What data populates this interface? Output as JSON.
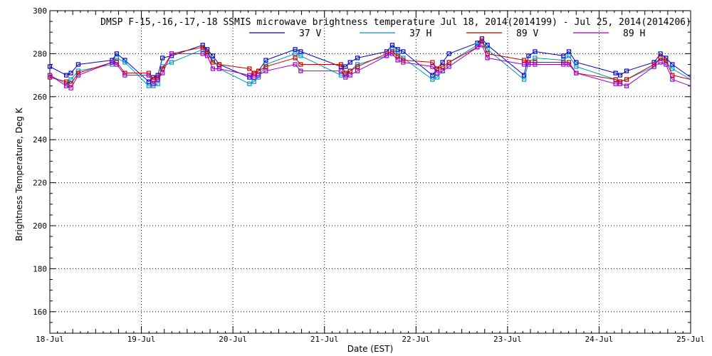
{
  "chart_data": {
    "type": "line",
    "title": "DMSP F-15,-16,-17,-18 SSMIS microwave brightness temperature Jul 18, 2014(2014199) - Jul 25, 2014(2014206)",
    "xlabel": "Date (EST)",
    "ylabel": "Brightness Temperature, Deg K",
    "xlim": [
      "2014-07-18",
      "2014-07-25"
    ],
    "ylim": [
      150,
      300
    ],
    "x_tick_labels": [
      "18-Jul",
      "19-Jul",
      "20-Jul",
      "21-Jul",
      "22-Jul",
      "23-Jul",
      "24-Jul",
      "25-Jul"
    ],
    "y_tick_labels": [
      "160",
      "180",
      "200",
      "220",
      "240",
      "260",
      "280",
      "300"
    ],
    "grid": true,
    "legend_position": "top",
    "x_unit": "days since 2014-07-18 00:00 EST",
    "series": [
      {
        "name": "37 V",
        "color": "#0000c8",
        "x": [
          0.0,
          0.18,
          0.23,
          0.31,
          0.68,
          0.73,
          0.82,
          1.08,
          1.13,
          1.18,
          1.23,
          1.33,
          1.67,
          1.72,
          1.78,
          1.85,
          2.18,
          2.23,
          2.28,
          2.36,
          2.68,
          2.74,
          3.18,
          3.23,
          3.28,
          3.36,
          3.68,
          3.74,
          3.8,
          3.86,
          4.18,
          4.23,
          4.29,
          4.36,
          4.67,
          4.72,
          4.78,
          5.18,
          5.23,
          5.3,
          5.61,
          5.67,
          5.75,
          6.18,
          6.23,
          6.3,
          6.6,
          6.67,
          6.73,
          6.8,
          7.0
        ],
        "y": [
          274,
          270,
          271,
          275,
          277,
          280,
          277,
          267,
          269,
          270,
          278,
          279,
          284,
          282,
          279,
          275,
          269,
          271,
          272,
          277,
          282,
          281,
          274,
          274,
          276,
          278,
          281,
          284,
          282,
          281,
          270,
          273,
          276,
          280,
          285,
          287,
          284,
          270,
          279,
          281,
          279,
          281,
          276,
          271,
          270,
          272,
          276,
          280,
          278,
          275,
          269
        ]
      },
      {
        "name": "37 H",
        "color": "#0096c8",
        "x": [
          0.0,
          0.18,
          0.23,
          0.31,
          0.68,
          0.73,
          0.82,
          1.08,
          1.13,
          1.18,
          1.23,
          1.33,
          1.67,
          1.72,
          1.78,
          1.85,
          2.18,
          2.23,
          2.28,
          2.36,
          2.68,
          2.74,
          3.18,
          3.23,
          3.28,
          3.36,
          3.68,
          3.74,
          3.8,
          3.86,
          4.18,
          4.23,
          4.29,
          4.36,
          4.67,
          4.72,
          4.78,
          5.18,
          5.23,
          5.3,
          5.61,
          5.67,
          5.75,
          6.18,
          6.23,
          6.3,
          6.6,
          6.67,
          6.73,
          6.8,
          7.0
        ],
        "y": [
          270,
          266,
          268,
          272,
          275,
          278,
          276,
          265,
          265,
          266,
          274,
          276,
          282,
          280,
          277,
          273,
          266,
          267,
          269,
          275,
          280,
          279,
          270,
          270,
          272,
          275,
          279,
          282,
          280,
          278,
          268,
          269,
          272,
          276,
          284,
          286,
          282,
          268,
          276,
          278,
          277,
          279,
          274,
          268,
          267,
          268,
          274,
          278,
          276,
          273,
          268
        ]
      },
      {
        "name": "89 V",
        "color": "#c80000",
        "x": [
          0.0,
          0.18,
          0.23,
          0.31,
          0.68,
          0.73,
          0.82,
          1.08,
          1.13,
          1.18,
          1.23,
          1.33,
          1.67,
          1.72,
          1.78,
          1.85,
          2.18,
          2.23,
          2.28,
          2.36,
          2.68,
          2.74,
          3.18,
          3.23,
          3.28,
          3.36,
          3.68,
          3.74,
          3.8,
          3.86,
          4.18,
          4.23,
          4.29,
          4.36,
          4.67,
          4.72,
          4.78,
          5.18,
          5.23,
          5.3,
          5.61,
          5.67,
          5.75,
          6.18,
          6.23,
          6.3,
          6.6,
          6.67,
          6.73,
          6.8,
          7.0
        ],
        "y": [
          269,
          267,
          266,
          271,
          276,
          276,
          271,
          271,
          268,
          269,
          273,
          280,
          283,
          281,
          276,
          275,
          273,
          271,
          272,
          274,
          278,
          275,
          275,
          271,
          272,
          274,
          280,
          281,
          279,
          277,
          276,
          273,
          274,
          276,
          283,
          286,
          280,
          277,
          276,
          276,
          276,
          276,
          271,
          268,
          267,
          268,
          275,
          278,
          277,
          270,
          268
        ]
      },
      {
        "name": "89 H",
        "color": "#a000c8",
        "x": [
          0.0,
          0.18,
          0.23,
          0.31,
          0.68,
          0.73,
          0.82,
          1.08,
          1.13,
          1.18,
          1.23,
          1.33,
          1.67,
          1.72,
          1.78,
          1.85,
          2.18,
          2.23,
          2.28,
          2.36,
          2.68,
          2.74,
          3.18,
          3.23,
          3.28,
          3.36,
          3.68,
          3.74,
          3.8,
          3.86,
          4.18,
          4.23,
          4.29,
          4.36,
          4.67,
          4.72,
          4.78,
          5.18,
          5.23,
          5.3,
          5.61,
          5.67,
          5.75,
          6.18,
          6.23,
          6.3,
          6.6,
          6.67,
          6.73,
          6.8,
          7.0
        ],
        "y": [
          270,
          265,
          264,
          270,
          276,
          275,
          270,
          270,
          266,
          268,
          271,
          280,
          280,
          279,
          273,
          273,
          270,
          269,
          270,
          272,
          275,
          272,
          272,
          269,
          270,
          272,
          279,
          280,
          277,
          276,
          274,
          271,
          272,
          274,
          283,
          284,
          278,
          275,
          275,
          275,
          275,
          275,
          271,
          266,
          266,
          265,
          274,
          276,
          275,
          268,
          265
        ]
      }
    ]
  }
}
